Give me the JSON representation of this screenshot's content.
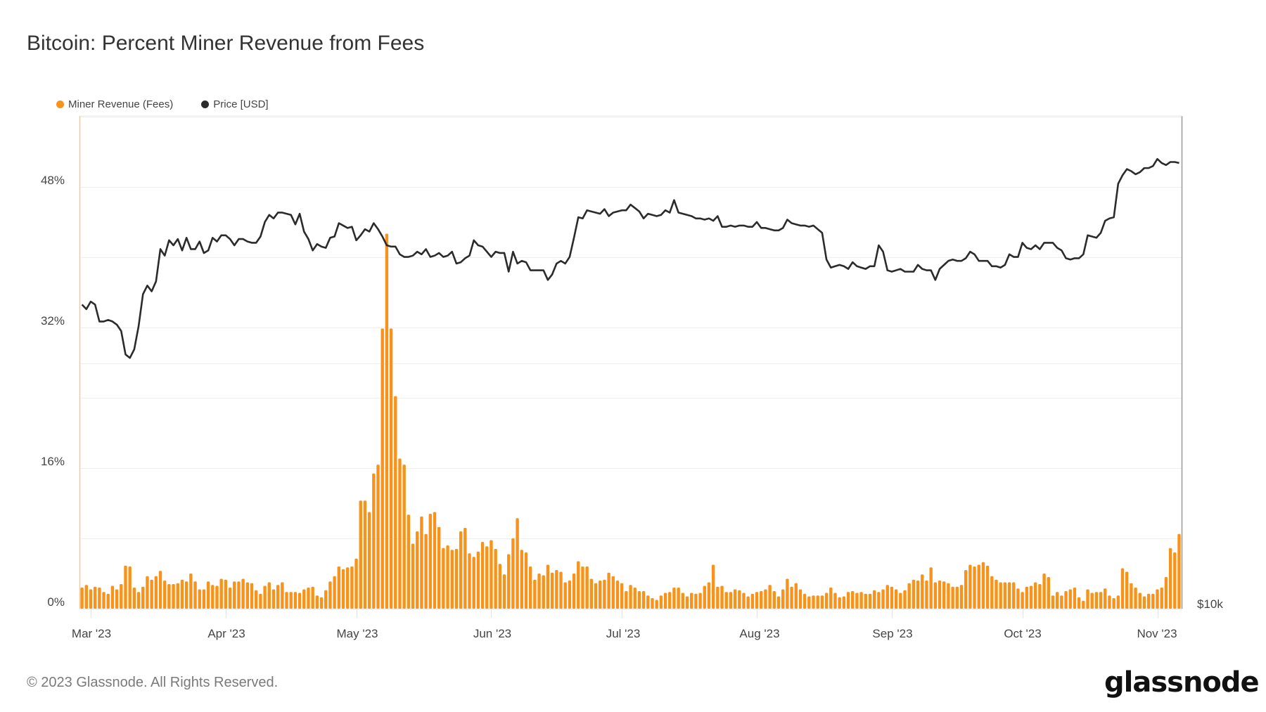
{
  "title": "Bitcoin: Percent Miner Revenue from Fees",
  "legend": [
    {
      "label": "Miner Revenue (Fees)",
      "color": "#F7931A"
    },
    {
      "label": "Price [USD]",
      "color": "#2b2b2b"
    }
  ],
  "footer": "© 2023 Glassnode. All Rights Reserved.",
  "brand": "glassnode",
  "chart_data": {
    "type": "bar+line",
    "title": "Bitcoin: Percent Miner Revenue from Fees",
    "x_start": "2023-02-27",
    "x_step_days": 1,
    "x_ticks": [
      "Mar '23",
      "Apr '23",
      "May '23",
      "Jun '23",
      "Jul '23",
      "Aug '23",
      "Sep '23",
      "Oct '23",
      "Nov '23"
    ],
    "x_tick_day_index": [
      2,
      33,
      63,
      94,
      124,
      155,
      186,
      216,
      247
    ],
    "y_left": {
      "label": "Miner Revenue (Fees) %",
      "ylim": [
        0,
        56.1
      ],
      "ticks": [
        "0%",
        "16%",
        "32%",
        "48%"
      ],
      "tick_values": [
        0,
        16,
        32,
        48
      ],
      "grid_step": 8
    },
    "y_right": {
      "scale": "log",
      "ylim": [
        10000,
        40200
      ],
      "ticks": [
        "$10k"
      ],
      "tick_values": [
        10000
      ],
      "grid_values": [
        20000
      ]
    },
    "grid": true,
    "legend_position": "top-left",
    "series": [
      {
        "name": "Miner Revenue (Fees)",
        "type": "bar",
        "axis": "left",
        "unit": "%",
        "color": "#F7931A",
        "values": [
          2.4,
          2.7,
          2.2,
          2.5,
          2.4,
          1.9,
          1.7,
          2.6,
          2.2,
          2.8,
          4.9,
          4.8,
          2.4,
          1.9,
          2.5,
          3.7,
          3.3,
          3.7,
          4.3,
          3.2,
          2.8,
          2.8,
          2.9,
          3.3,
          3.1,
          4.0,
          3.1,
          2.2,
          2.2,
          3.1,
          2.7,
          2.6,
          3.4,
          3.3,
          2.4,
          3.1,
          3.1,
          3.4,
          3.0,
          2.9,
          2.1,
          1.7,
          2.6,
          3.0,
          2.2,
          2.7,
          3.0,
          1.9,
          1.9,
          1.9,
          1.8,
          2.2,
          2.4,
          2.5,
          1.5,
          1.3,
          2.1,
          3.1,
          3.7,
          4.8,
          4.5,
          4.7,
          4.8,
          5.7,
          12.3,
          12.3,
          11.0,
          15.4,
          16.4,
          31.9,
          42.7,
          31.9,
          24.2,
          17.1,
          16.4,
          10.7,
          7.4,
          8.8,
          10.5,
          8.5,
          10.8,
          11.0,
          9.3,
          6.9,
          7.2,
          6.7,
          6.8,
          8.8,
          9.2,
          6.3,
          5.9,
          6.5,
          7.6,
          7.1,
          7.8,
          6.8,
          5.1,
          3.9,
          6.2,
          8.0,
          10.3,
          6.7,
          6.4,
          4.8,
          3.3,
          4.0,
          3.8,
          5.0,
          4.1,
          4.4,
          4.2,
          3.0,
          3.2,
          4.0,
          5.4,
          4.8,
          4.8,
          3.4,
          2.9,
          3.2,
          3.3,
          4.1,
          3.7,
          3.2,
          2.9,
          2.0,
          2.7,
          2.4,
          2.0,
          2.0,
          1.5,
          1.2,
          1.0,
          1.5,
          1.8,
          1.9,
          2.4,
          2.4,
          1.8,
          1.4,
          1.8,
          1.7,
          1.8,
          2.6,
          3.0,
          5.0,
          2.5,
          2.6,
          1.9,
          1.9,
          2.2,
          2.1,
          1.8,
          1.4,
          1.7,
          1.9,
          2.0,
          2.2,
          2.7,
          2.0,
          1.4,
          2.2,
          3.4,
          2.5,
          2.9,
          2.2,
          1.7,
          1.4,
          1.5,
          1.5,
          1.5,
          1.8,
          2.4,
          1.8,
          1.3,
          1.4,
          1.9,
          2.0,
          1.8,
          1.9,
          1.7,
          1.7,
          2.1,
          1.9,
          2.2,
          2.7,
          2.5,
          2.2,
          1.8,
          2.1,
          2.9,
          3.3,
          3.2,
          3.9,
          3.2,
          4.7,
          3.0,
          3.2,
          3.1,
          2.9,
          2.5,
          2.5,
          2.7,
          4.4,
          5.0,
          4.8,
          5.0,
          5.3,
          4.9,
          3.7,
          3.3,
          3.0,
          3.0,
          3.0,
          3.0,
          2.3,
          1.9,
          2.5,
          2.6,
          3.0,
          2.8,
          4.0,
          3.6,
          1.5,
          1.9,
          1.5,
          2.0,
          2.2,
          2.4,
          1.3,
          0.9,
          2.2,
          1.8,
          1.9,
          1.9,
          2.3,
          1.5,
          1.2,
          1.5,
          4.6,
          4.2,
          2.9,
          2.4,
          1.8,
          1.4,
          1.7,
          1.7,
          2.2,
          2.4,
          3.6,
          6.9,
          6.4,
          8.5
        ]
      },
      {
        "name": "Price [USD]",
        "type": "line",
        "axis": "right",
        "unit": "USD thousands",
        "color": "#2b2b2b",
        "values": [
          23.6,
          23.3,
          23.8,
          23.6,
          22.5,
          22.5,
          22.6,
          22.5,
          22.3,
          21.9,
          20.5,
          20.3,
          20.8,
          22.2,
          24.3,
          24.9,
          24.5,
          25.2,
          27.6,
          27.1,
          28.3,
          27.9,
          28.4,
          27.5,
          28.5,
          27.6,
          27.6,
          28.2,
          27.3,
          27.5,
          28.5,
          28.2,
          28.7,
          28.7,
          28.4,
          27.9,
          28.4,
          28.4,
          28.2,
          28.1,
          28.1,
          28.6,
          29.8,
          30.4,
          30.1,
          30.6,
          30.6,
          30.5,
          30.4,
          29.6,
          30.5,
          29.0,
          28.4,
          27.5,
          28.0,
          27.8,
          27.7,
          28.5,
          28.6,
          29.7,
          29.5,
          29.3,
          29.4,
          28.3,
          28.7,
          29.2,
          29.0,
          29.7,
          29.2,
          28.6,
          27.9,
          27.8,
          27.8,
          27.2,
          27.0,
          27.0,
          27.1,
          27.4,
          27.2,
          27.6,
          27.0,
          27.1,
          27.3,
          27.0,
          27.1,
          27.4,
          26.5,
          26.6,
          26.9,
          27.1,
          28.3,
          27.9,
          27.8,
          27.4,
          27.0,
          27.4,
          27.3,
          27.3,
          25.9,
          27.4,
          26.5,
          26.7,
          26.6,
          26.0,
          26.0,
          26.0,
          26.0,
          25.3,
          25.7,
          26.5,
          26.7,
          26.5,
          27.0,
          28.5,
          30.2,
          30.1,
          30.8,
          30.7,
          30.6,
          30.5,
          30.9,
          30.3,
          30.6,
          30.7,
          30.8,
          30.8,
          31.3,
          31.0,
          30.7,
          30.1,
          30.5,
          30.4,
          30.3,
          30.4,
          30.8,
          30.6,
          31.7,
          30.6,
          30.5,
          30.4,
          30.3,
          30.1,
          30.1,
          30.0,
          30.1,
          29.9,
          30.3,
          29.4,
          29.4,
          29.5,
          29.4,
          29.5,
          29.5,
          29.4,
          29.4,
          29.8,
          29.3,
          29.3,
          29.2,
          29.1,
          29.1,
          29.3,
          30.0,
          29.7,
          29.6,
          29.5,
          29.5,
          29.4,
          29.5,
          29.2,
          28.9,
          26.8,
          26.2,
          26.3,
          26.4,
          26.3,
          26.1,
          26.6,
          26.3,
          26.2,
          26.1,
          26.3,
          26.3,
          27.9,
          27.4,
          26.0,
          25.9,
          26.0,
          26.1,
          25.9,
          25.9,
          25.9,
          26.4,
          26.1,
          26.0,
          26.0,
          25.3,
          26.1,
          26.4,
          26.7,
          26.8,
          26.7,
          26.7,
          26.9,
          27.4,
          27.2,
          26.7,
          26.7,
          26.7,
          26.3,
          26.3,
          26.2,
          26.4,
          27.2,
          27.0,
          27.0,
          28.1,
          27.7,
          27.6,
          27.9,
          27.6,
          28.1,
          28.1,
          28.1,
          27.7,
          27.5,
          26.9,
          26.8,
          26.9,
          26.9,
          27.2,
          28.7,
          28.6,
          28.5,
          28.9,
          29.9,
          30.1,
          30.2,
          33.2,
          34.0,
          34.6,
          34.4,
          34.1,
          34.3,
          34.7,
          34.7,
          34.9,
          35.6,
          35.2,
          35.0,
          35.3,
          35.3,
          35.2
        ]
      }
    ]
  }
}
